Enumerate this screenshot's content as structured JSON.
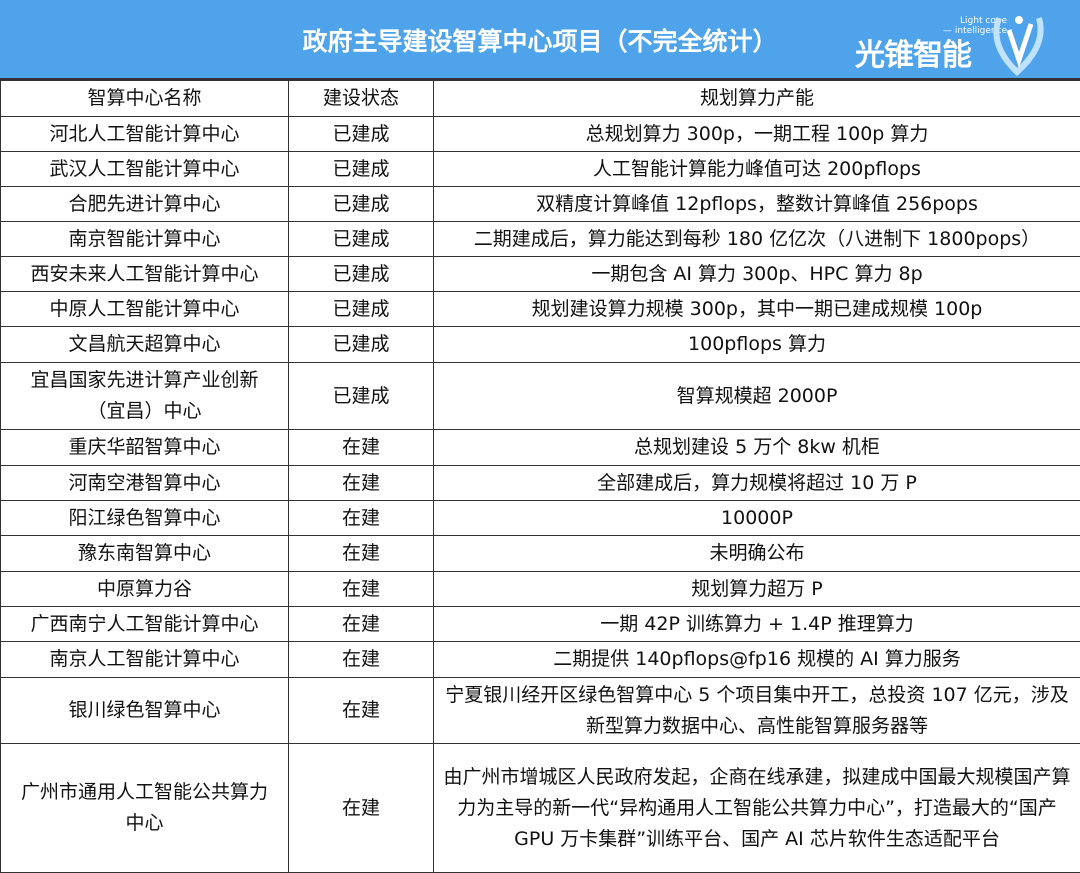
{
  "header": {
    "title": "政府主导建设智算中心项目（不完全统计）",
    "logo_cn": "光锥智能",
    "logo_en_1": "Light cone",
    "logo_en_2": "— intelligence",
    "brand_color": "#4ea3ea"
  },
  "columns": [
    "智算中心名称",
    "建设状态",
    "规划算力产能"
  ],
  "rows": [
    {
      "name": "河北人工智能计算中心",
      "status": "已建成",
      "capacity": "总规划算力 300p，一期工程 100p 算力"
    },
    {
      "name": "武汉人工智能计算中心",
      "status": "已建成",
      "capacity": "人工智能计算能力峰值可达 200pflops"
    },
    {
      "name": "合肥先进计算中心",
      "status": "已建成",
      "capacity": "双精度计算峰值 12pflops，整数计算峰值 256pops"
    },
    {
      "name": "南京智能计算中心",
      "status": "已建成",
      "capacity": "二期建成后，算力能达到每秒 180 亿亿次（八进制下 1800pops）"
    },
    {
      "name": "西安未来人工智能计算中心",
      "status": "已建成",
      "capacity": "一期包含 AI 算力 300p、HPC 算力 8p"
    },
    {
      "name": "中原人工智能计算中心",
      "status": "已建成",
      "capacity": "规划建设算力规模 300p，其中一期已建成规模 100p"
    },
    {
      "name": "文昌航天超算中心",
      "status": "已建成",
      "capacity": "100pflops 算力"
    },
    {
      "name": "宜昌国家先进计算产业创新（宜昌）中心",
      "status": "已建成",
      "capacity": "智算规模超 2000P"
    },
    {
      "name": "重庆华韶智算中心",
      "status": "在建",
      "capacity": "总规划建设 5 万个 8kw 机柜"
    },
    {
      "name": "河南空港智算中心",
      "status": "在建",
      "capacity": "全部建成后，算力规模将超过 10 万 P"
    },
    {
      "name": "阳江绿色智算中心",
      "status": "在建",
      "capacity": "10000P"
    },
    {
      "name": "豫东南智算中心",
      "status": "在建",
      "capacity": "未明确公布"
    },
    {
      "name": "中原算力谷",
      "status": "在建",
      "capacity": "规划算力超万 P"
    },
    {
      "name": "广西南宁人工智能计算中心",
      "status": "在建",
      "capacity": "一期 42P 训练算力 + 1.4P 推理算力"
    },
    {
      "name": "南京人工智能计算中心",
      "status": "在建",
      "capacity": "二期提供 140pflops@fp16 规模的 AI 算力服务"
    },
    {
      "name": "银川绿色智算中心",
      "status": "在建",
      "capacity": "宁夏银川经开区绿色智算中心 5 个项目集中开工，总投资 107 亿元，涉及新型算力数据中心、高性能智算服务器等"
    },
    {
      "name": "广州市通用人工智能公共算力中心",
      "status": "在建",
      "capacity": "由广州市增城区人民政府发起，企商在线承建，拟建成中国最大规模国产算力为主导的新一代“异构通用人工智能公共算力中心”，打造最大的“国产 GPU 万卡集群”训练平台、国产 AI 芯片软件生态适配平台"
    }
  ]
}
